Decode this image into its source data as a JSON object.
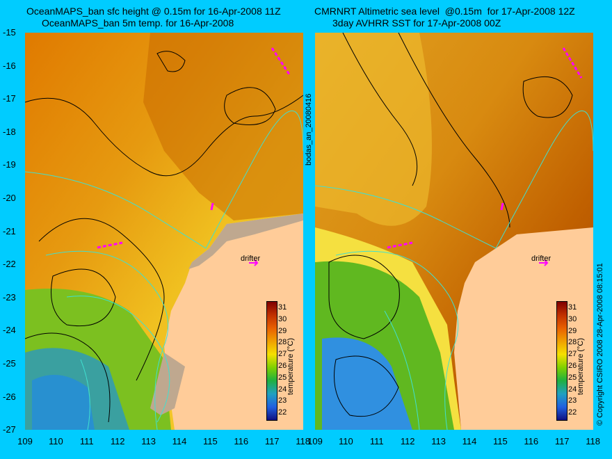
{
  "left": {
    "title_line1": "OceanMAPS_ban sfc height @ 0.15m for 16-Apr-2008 11Z",
    "title_line2": "OceanMAPS_ban 5m temp. for 16-Apr-2008",
    "drifter_label": "drifter",
    "colorbar_label": "temperature (°C)"
  },
  "right": {
    "title_line1": "CMRNRT Altimetric sea level  @0.15m  for 17-Apr-2008 12Z",
    "title_line2": "3day AVHRR SST for 17-Apr-2008 00Z",
    "drifter_label": "drifter",
    "colorbar_label": "temperature (°C)"
  },
  "center_label": "bodas_an_20080416",
  "copyright": "© Copyright CSIRO 2008   28-Apr-2008 08:15:01",
  "lat_ticks": [
    "-15",
    "-16",
    "-17",
    "-18",
    "-19",
    "-20",
    "-21",
    "-22",
    "-23",
    "-24",
    "-25",
    "-26",
    "-27"
  ],
  "lon_ticks": [
    "109",
    "110",
    "111",
    "112",
    "113",
    "114",
    "115",
    "116",
    "117",
    "118"
  ],
  "colorbar_ticks": [
    "31",
    "30",
    "29",
    "28",
    "27",
    "26",
    "25",
    "24",
    "23",
    "22"
  ],
  "colors": {
    "background": "#00ccff",
    "land": "#ffcc99",
    "contour": "#000000",
    "isobath": "#40e0d0",
    "drifter_track": "#ff00ff"
  },
  "icons": [
    "drifter-arrow-icon",
    "drifter-track-icon"
  ]
}
